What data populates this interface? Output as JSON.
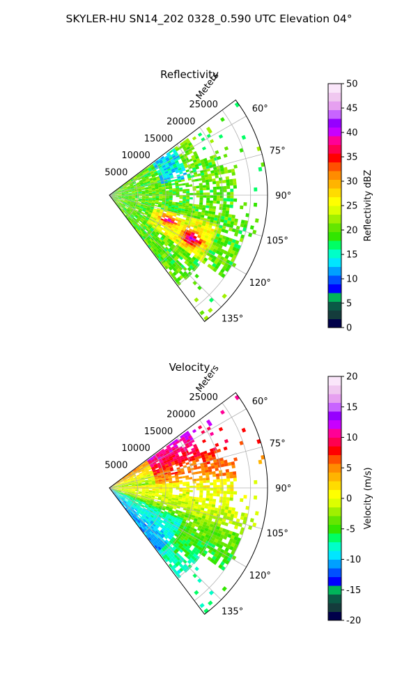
{
  "figure_title": "SKYLER-HU  SN14_202  0328_0.590 UTC Elevation 04°",
  "chart_data": [
    {
      "type": "heatmap",
      "subtype": "polar-sector",
      "title": "Reflectivity",
      "radial_label": "Meters",
      "radial_ticks": [
        "5000",
        "10000",
        "15000",
        "20000",
        "25000"
      ],
      "radial_tick_values": [
        5000,
        10000,
        15000,
        20000,
        25000
      ],
      "rlim": [
        0,
        28000
      ],
      "azimuth_ticks": [
        "60°",
        "75°",
        "90°",
        "105°",
        "120°",
        "135°"
      ],
      "azimuth_tick_values": [
        60,
        75,
        90,
        105,
        120,
        135
      ],
      "azimuth_range": [
        53,
        143
      ],
      "grid": true,
      "colorbar": {
        "label": "Reflectivity dBZ",
        "ticks": [
          "0",
          "5",
          "10",
          "15",
          "20",
          "25",
          "30",
          "35",
          "40",
          "45",
          "50"
        ],
        "range": [
          0,
          50
        ],
        "colors": [
          "#00004a",
          "#143c3c",
          "#0a5a46",
          "#00b45a",
          "#0000ff",
          "#0050ff",
          "#00a0ff",
          "#00e6ff",
          "#00ffc8",
          "#00ff64",
          "#32e600",
          "#64e600",
          "#a0f000",
          "#dcff00",
          "#ffff00",
          "#ffdc00",
          "#ffb400",
          "#ff8c00",
          "#ff5000",
          "#ff0000",
          "#ff0050",
          "#ff0096",
          "#c800ff",
          "#9600ff",
          "#c864ff",
          "#e6a0f0",
          "#f0c8f0",
          "#fae6fa"
        ]
      },
      "field_description": "Sector of radar reflectivity mostly 15–25 dBZ (green/yellow), with embedded 30–37 dBZ cores near azimuth 110–118° at 10–17 km"
    },
    {
      "type": "heatmap",
      "subtype": "polar-sector",
      "title": "Velocity",
      "radial_label": "Meters",
      "radial_ticks": [
        "5000",
        "10000",
        "15000",
        "20000",
        "25000"
      ],
      "radial_tick_values": [
        5000,
        10000,
        15000,
        20000,
        25000
      ],
      "rlim": [
        0,
        28000
      ],
      "azimuth_ticks": [
        "60°",
        "75°",
        "90°",
        "105°",
        "120°",
        "135°"
      ],
      "azimuth_tick_values": [
        60,
        75,
        90,
        105,
        120,
        135
      ],
      "azimuth_range": [
        53,
        143
      ],
      "grid": true,
      "colorbar": {
        "label": "Velocity (m/s)",
        "ticks": [
          "-20",
          "-15",
          "-10",
          "-5",
          "0",
          "5",
          "10",
          "15",
          "20"
        ],
        "range": [
          -20,
          20
        ],
        "colors": [
          "#00004a",
          "#143c3c",
          "#0a5a46",
          "#00b45a",
          "#0000ff",
          "#0050ff",
          "#00a0ff",
          "#00e6ff",
          "#00ffc8",
          "#00ff64",
          "#32e600",
          "#64e600",
          "#a0f000",
          "#dcff00",
          "#ffff00",
          "#ffdc00",
          "#ffb400",
          "#ff8c00",
          "#ff5000",
          "#ff0000",
          "#ff0050",
          "#ff0096",
          "#c800ff",
          "#9600ff",
          "#c864ff",
          "#e6a0f0",
          "#f0c8f0",
          "#fae6fa"
        ]
      },
      "field_description": "Radial velocity: outbound 8–12 m/s (red/orange) at azimuth 60–85°, near 0 m/s (yellow) at 85–110°, inbound −5 to −8 m/s (green) at 110–140°"
    }
  ]
}
